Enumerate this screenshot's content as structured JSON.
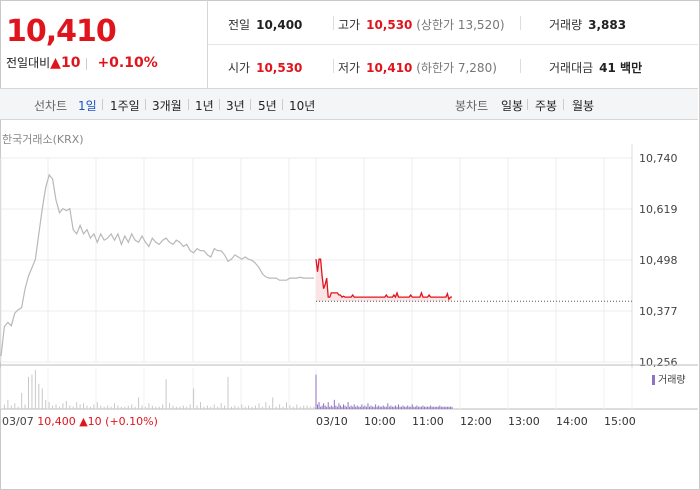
{
  "quote": {
    "price": "10,410",
    "change_label": "전일대비",
    "change_arrow": "▲",
    "change_value": "10",
    "change_pct": "+0.10%"
  },
  "stats": {
    "prev_close_label": "전일",
    "prev_close": "10,400",
    "high_label": "고가",
    "high": "10,530",
    "upper_limit": "(상한가 13,520)",
    "volume_label": "거래량",
    "volume": "3,883",
    "open_label": "시가",
    "open": "10,530",
    "low_label": "저가",
    "low": "10,410",
    "lower_limit": "(하한가 7,280)",
    "amount_label": "거래대금",
    "amount": "41 백만"
  },
  "tabs": {
    "line_label": "선차트",
    "line_periods": [
      "1일",
      "1주일",
      "3개월",
      "1년",
      "3년",
      "5년",
      "10년"
    ],
    "candle_label": "봉차트",
    "candle_periods": [
      "일봉",
      "주봉",
      "월봉"
    ]
  },
  "exchange": "한국거래소(KRX)",
  "volume_legend": "거래량",
  "bottom": {
    "date": "03/07",
    "close": "10,400",
    "arrow": "▲",
    "change": "10",
    "pct": "(+0.10%)"
  },
  "colors": {
    "up": "#e0141c",
    "prev_day_line": "#b8b8b8",
    "today_fill": "#fbe4e6",
    "volume_bar": "#c8c8c8",
    "volume_today": "#8f72c4"
  },
  "chart_data": {
    "type": "line",
    "title": "",
    "xlabel": "",
    "ylabel": "",
    "ylim": [
      10256,
      10740
    ],
    "y_ticks": [
      "10,740",
      "10,619",
      "10,498",
      "10,377",
      "10,256"
    ],
    "x_ticks": [
      "03/07",
      "03/10",
      "10:00",
      "11:00",
      "12:00",
      "13:00",
      "14:00",
      "15:00"
    ],
    "reference_line": 10400,
    "series": [
      {
        "values": [
          10270,
          10340,
          10350,
          10342,
          10372,
          10380,
          10385,
          10430,
          10460,
          10480,
          10500,
          10560,
          10620,
          10670,
          10700,
          10690,
          10640,
          10610,
          10620,
          10615,
          10620,
          10570,
          10560,
          10580,
          10560,
          10570,
          10550,
          10560,
          10540,
          10560,
          10545,
          10550,
          10560,
          10545,
          10560,
          10535,
          10555,
          10540,
          10560,
          10545,
          10540,
          10555,
          10540,
          10530,
          10550,
          10540,
          10535,
          10545,
          10550,
          10540,
          10535,
          10545,
          10540,
          10530,
          10535,
          10520,
          10515,
          10525,
          10520,
          10520,
          10510,
          10505,
          10525,
          10520,
          10520,
          10510,
          10495,
          10500,
          10510,
          10505,
          10500,
          10505,
          10500,
          10497,
          10490,
          10480,
          10465,
          10458,
          10455,
          10455,
          10455,
          10450,
          10450,
          10450,
          10455,
          10455,
          10455,
          10457,
          10455,
          10455,
          10455,
          10455
        ]
      },
      {
        "values": [
          10500,
          10470,
          10500,
          10500,
          10460,
          10430,
          10440,
          10455,
          10410,
          10410,
          10420,
          10420,
          10420,
          10420,
          10420,
          10415,
          10415,
          10410,
          10412,
          10410,
          10410,
          10410,
          10410,
          10410,
          10415,
          10410,
          10410,
          10410,
          10410,
          10410,
          10410,
          10410,
          10410,
          10410,
          10410,
          10410,
          10410,
          10410,
          10410,
          10410,
          10410,
          10410,
          10410,
          10410,
          10410,
          10410,
          10415,
          10410,
          10410,
          10410,
          10410,
          10415,
          10410,
          10420,
          10410,
          10410,
          10410,
          10410,
          10410,
          10410,
          10410,
          10410,
          10415,
          10410,
          10410,
          10410,
          10410,
          10410,
          10410,
          10420,
          10410,
          10410,
          10410,
          10410,
          10415,
          10410,
          10410,
          10410,
          10410,
          10410,
          10410,
          10410,
          10410,
          10410,
          10410,
          10410,
          10418,
          10405,
          10410,
          10410
        ]
      }
    ],
    "volume": {
      "prev_day": [
        0,
        4,
        8,
        3,
        5,
        2,
        14,
        4,
        28,
        30,
        34,
        22,
        18,
        8,
        6,
        3,
        4,
        2,
        5,
        7,
        3,
        2,
        6,
        4,
        5,
        3,
        2,
        4,
        6,
        3,
        2,
        3,
        2,
        5,
        3,
        2,
        2,
        3,
        4,
        2,
        10,
        3,
        2,
        5,
        3,
        2,
        2,
        4,
        26,
        5,
        3,
        2,
        2,
        3,
        2,
        4,
        18,
        3,
        6,
        2,
        3,
        2,
        4,
        2,
        5,
        3,
        28,
        2,
        3,
        2,
        4,
        2,
        3,
        2,
        3,
        5,
        2,
        6,
        3,
        10,
        2,
        4,
        2,
        6,
        3,
        2,
        4,
        2,
        3,
        3,
        2,
        2
      ],
      "today": [
        30,
        4,
        6,
        2,
        3,
        5,
        3,
        2,
        6,
        2,
        3,
        2,
        8,
        3,
        2,
        5,
        3,
        2,
        4,
        3,
        2,
        6,
        2,
        3,
        2,
        4,
        2,
        3,
        2,
        2,
        4,
        2,
        3,
        2,
        5,
        2,
        3,
        2,
        2,
        4,
        2,
        3,
        2,
        2,
        3,
        2,
        2,
        5,
        2,
        3,
        2,
        2,
        3,
        2,
        4,
        2,
        2,
        3,
        2,
        2,
        3,
        2,
        2,
        4,
        2,
        2,
        3,
        2,
        2,
        2,
        3,
        2,
        2,
        2,
        2,
        3,
        2,
        2,
        2,
        2,
        2,
        3,
        2,
        2,
        2,
        2,
        2,
        2,
        2,
        2
      ]
    }
  }
}
